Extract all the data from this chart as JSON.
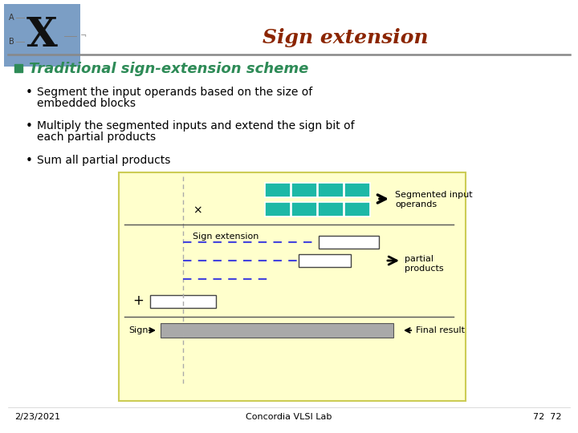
{
  "title": "Sign extension",
  "title_color": "#8B2500",
  "bullet_header": "Traditional sign-extension scheme",
  "bullet_header_color": "#2E8B57",
  "bullet1_line1": "Segment the input operands based on the size of",
  "bullet1_line2": "embedded blocks",
  "bullet2_line1": "Multiply the segmented inputs and extend the sign bit of",
  "bullet2_line2": "each partial products",
  "bullet3": "Sum all partial products",
  "bg_color": "#FFFFFF",
  "diagram_bg": "#FFFFCC",
  "teal_color": "#1DB8A6",
  "gray_color": "#A9A9A9",
  "blue_dash": "#4444DD",
  "footer_left": "2/23/2021",
  "footer_center": "Concordia VLSI Lab",
  "footer_right": "72  72",
  "logo_bg": "#7B9EC5"
}
